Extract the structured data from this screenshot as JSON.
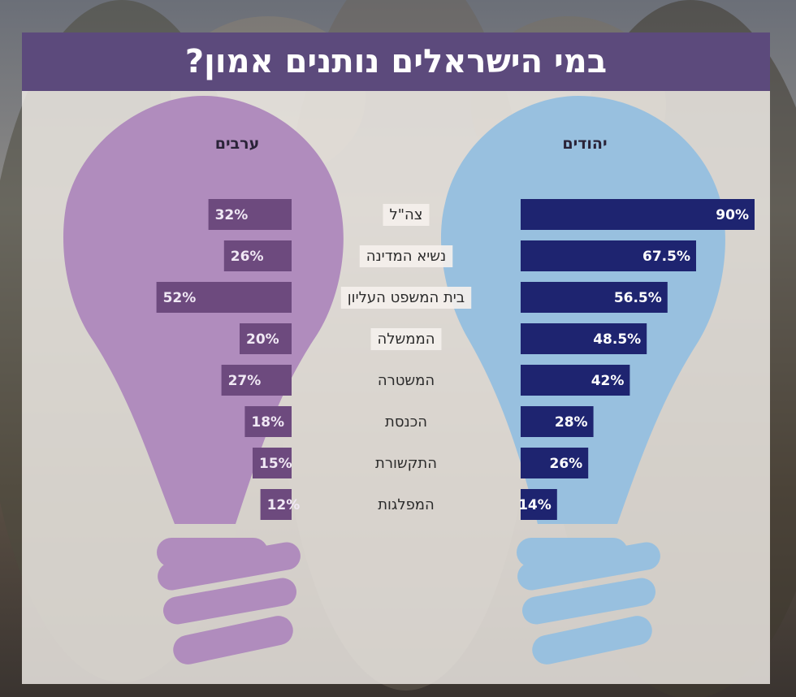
{
  "title": "במי הישראלים נותנים אמון?",
  "colors": {
    "arabs_bulb": "#b08cbd",
    "arabs_bar": "#6d4a7e",
    "jews_bulb": "#98c0df",
    "jews_bar": "#1e2470",
    "title_bar": "#5c4a7c"
  },
  "chart_data": {
    "type": "bar",
    "orientation": "horizontal",
    "unit": "%",
    "categories": [
      "צה\"ל",
      "נשיא המדינה",
      "בית המשפט העליון",
      "הממשלה",
      "המשטרה",
      "הכנסת",
      "התקשורת",
      "המפלגות"
    ],
    "series": [
      {
        "name": "ערבים",
        "values": [
          32,
          26,
          52,
          20,
          27,
          18,
          15,
          12
        ],
        "labels": [
          "32%",
          "26%",
          "52%",
          "20%",
          "27%",
          "18%",
          "15%",
          "12%"
        ]
      },
      {
        "name": "יהודים",
        "values": [
          90,
          67.5,
          56.5,
          48.5,
          42,
          28,
          26,
          14
        ],
        "labels": [
          "90%",
          "67.5%",
          "56.5%",
          "48.5%",
          "42%",
          "28%",
          "26%",
          "14%"
        ]
      }
    ],
    "xlim": [
      0,
      100
    ]
  }
}
